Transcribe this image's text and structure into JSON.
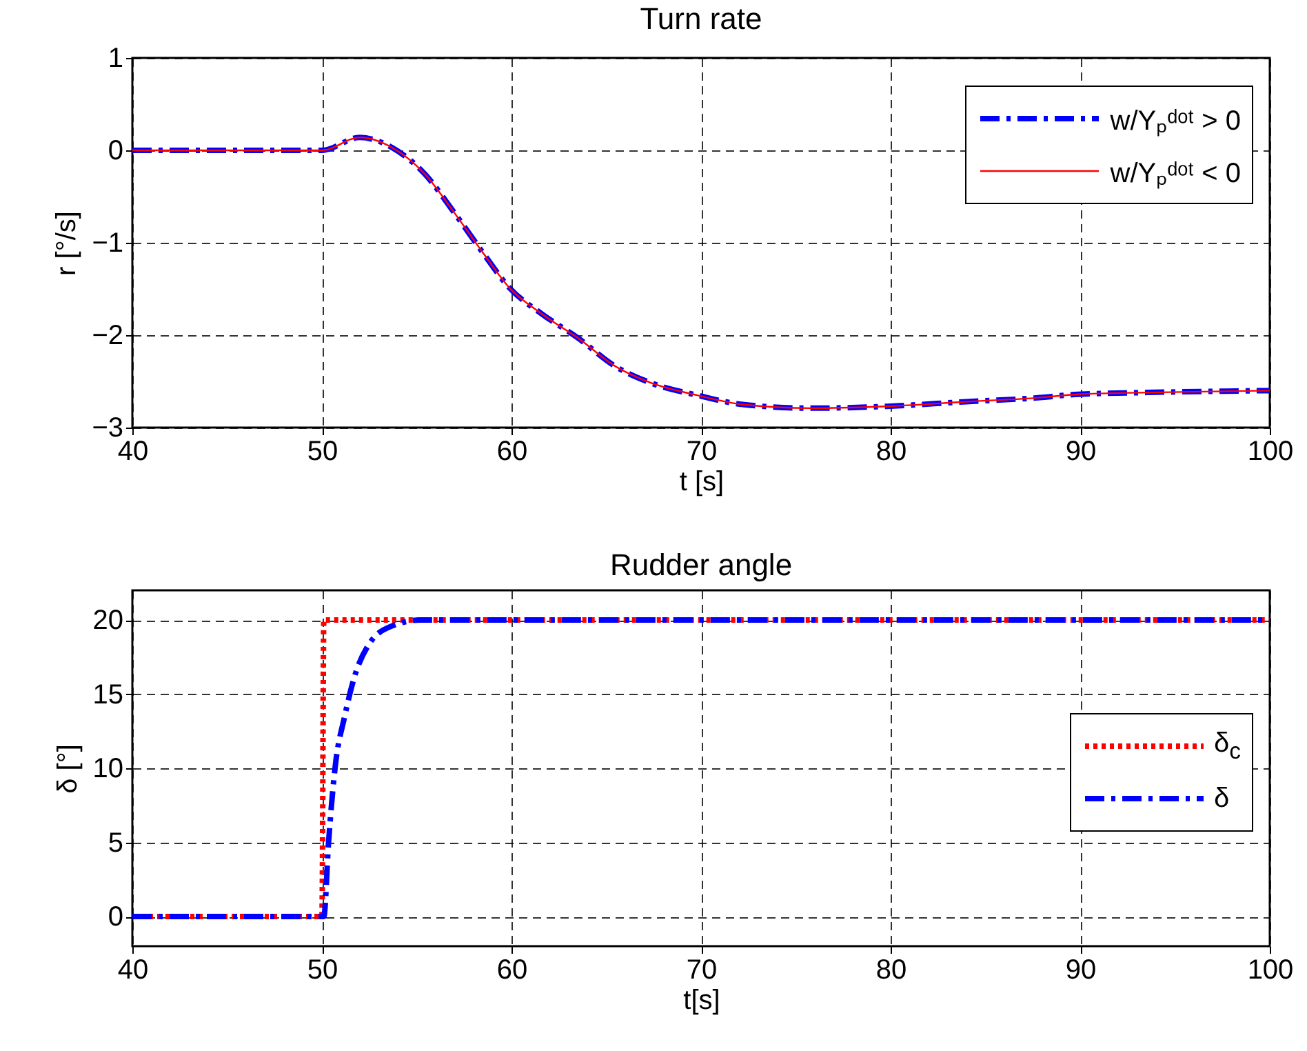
{
  "chart_data": [
    {
      "type": "line",
      "title": "Turn rate",
      "xlabel": "t [s]",
      "ylabel": "r [°/s]",
      "xlim": [
        40,
        100
      ],
      "xticks": [
        40,
        50,
        60,
        70,
        80,
        90,
        100
      ],
      "ylim": [
        -3,
        1
      ],
      "yticks": [
        -3,
        -2,
        -1,
        0,
        1
      ],
      "grid": true,
      "legend": "top right",
      "series": [
        {
          "name": "w/Yₚᵈᵒᵗ > 0",
          "color": "#0000ff",
          "line_style": "dashed",
          "x": [
            40,
            50,
            52.0,
            53.7,
            55.4,
            57.0,
            58.5,
            59.9,
            61.6,
            63.5,
            65.5,
            67.4,
            69.8,
            72.2,
            75.8,
            79.8,
            84.0,
            87.6,
            89.9,
            93.6,
            100
          ],
          "values": [
            0,
            0,
            0.14,
            0.03,
            -0.25,
            -0.68,
            -1.11,
            -1.49,
            -1.77,
            -2.03,
            -2.34,
            -2.52,
            -2.65,
            -2.75,
            -2.79,
            -2.77,
            -2.72,
            -2.68,
            -2.64,
            -2.62,
            -2.6
          ]
        },
        {
          "name": "w/Yₚᵈᵒᵗ < 0",
          "color": "#ff0000",
          "line_style": "solid",
          "x": [
            40,
            50,
            52.0,
            53.7,
            55.4,
            57.0,
            58.5,
            59.9,
            61.6,
            63.5,
            65.5,
            67.4,
            69.8,
            72.2,
            75.8,
            79.8,
            84.0,
            87.6,
            89.9,
            93.6,
            100
          ],
          "values": [
            0,
            0,
            0.14,
            0.03,
            -0.25,
            -0.68,
            -1.11,
            -1.49,
            -1.77,
            -2.03,
            -2.34,
            -2.52,
            -2.65,
            -2.75,
            -2.79,
            -2.77,
            -2.72,
            -2.68,
            -2.64,
            -2.62,
            -2.6
          ]
        }
      ]
    },
    {
      "type": "line",
      "title": "Rudder angle",
      "xlabel": "t[s]",
      "ylabel": "δ [°]",
      "xlim": [
        40,
        100
      ],
      "xticks": [
        40,
        50,
        60,
        70,
        80,
        90,
        100
      ],
      "ylim": [
        -2,
        22
      ],
      "yticks": [
        0,
        5,
        10,
        15,
        20
      ],
      "grid": true,
      "legend": "right",
      "series": [
        {
          "name": "δ$_{c}$",
          "color": "#ff0000",
          "line_style": "dotted",
          "x": [
            40,
            50,
            50.1,
            100
          ],
          "values": [
            0,
            0,
            20,
            20
          ]
        },
        {
          "name": "δ",
          "color": "#0000ff",
          "line_style": "dashed",
          "x": [
            40,
            50.1,
            50.35,
            50.7,
            51.2,
            51.7,
            52.5,
            53.7,
            55.2,
            100
          ],
          "values": [
            0,
            0,
            5,
            10.1,
            13.5,
            16.1,
            18.4,
            19.6,
            20,
            20
          ]
        }
      ]
    }
  ]
}
